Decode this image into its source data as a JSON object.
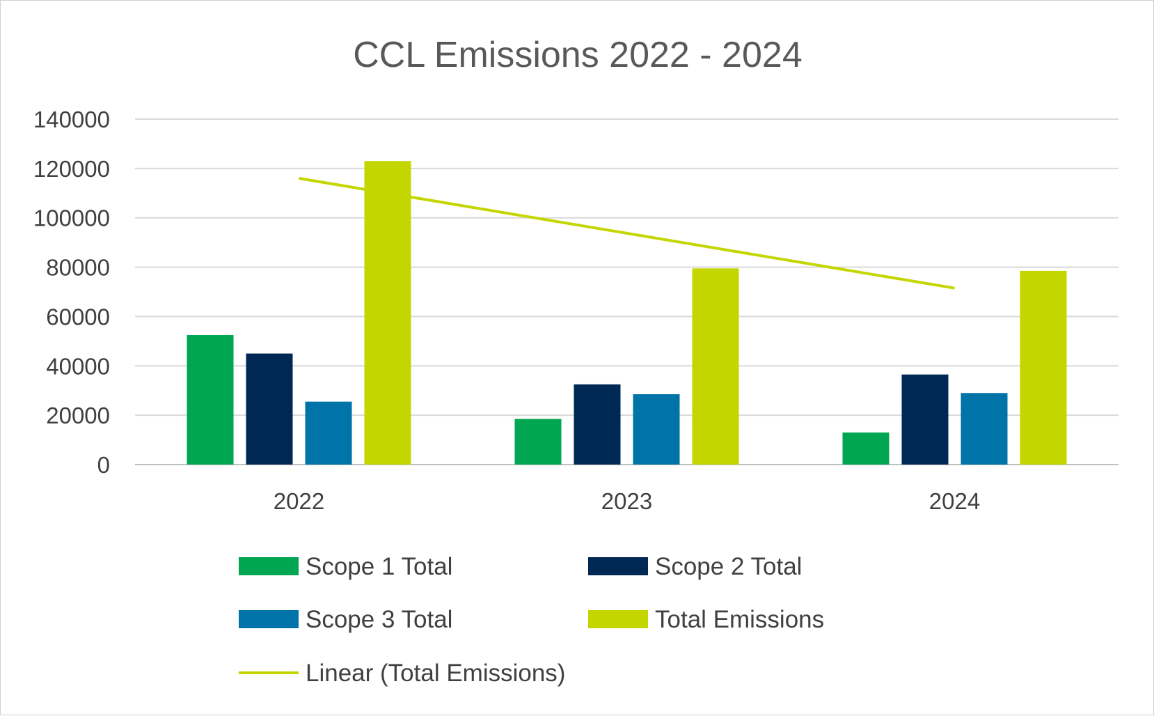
{
  "chart_data": {
    "type": "bar",
    "title": "CCL Emissions 2022 - 2024",
    "categories": [
      "2022",
      "2023",
      "2024"
    ],
    "series": [
      {
        "name": "Scope 1 Total",
        "color": "#00a651",
        "values": [
          52500,
          18500,
          13000
        ]
      },
      {
        "name": "Scope 2 Total",
        "color": "#002855",
        "values": [
          45000,
          32500,
          36500
        ]
      },
      {
        "name": "Scope 3 Total",
        "color": "#0073a8",
        "values": [
          25500,
          28500,
          29000
        ]
      },
      {
        "name": "Total Emissions",
        "color": "#c4d600",
        "values": [
          123000,
          79500,
          78500
        ]
      }
    ],
    "trendline": {
      "name": "Linear (Total Emissions)",
      "color": "#c4d600",
      "of_series": "Total Emissions",
      "values": [
        116000,
        93750,
        71500
      ]
    },
    "ylim": [
      0,
      140000
    ],
    "yticks": [
      "0",
      "20000",
      "40000",
      "60000",
      "80000",
      "100000",
      "120000",
      "140000"
    ],
    "xlabel": "",
    "ylabel": "",
    "grid": true,
    "legend_position": "bottom"
  }
}
